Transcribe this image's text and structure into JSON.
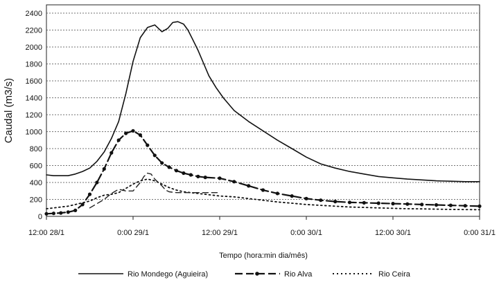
{
  "chart_data": {
    "type": "line",
    "xlabel": "Tempo (hora:min dia/mês)",
    "ylabel": "Caudal (m3/s)",
    "ylim": [
      0,
      2400
    ],
    "yticks": [
      0,
      200,
      400,
      600,
      800,
      1000,
      1200,
      1400,
      1600,
      1800,
      2000,
      2200,
      2400
    ],
    "xlim_hours": [
      0,
      60
    ],
    "xticks": [
      {
        "hours": 0,
        "label": "12:00 28/1"
      },
      {
        "hours": 12,
        "label": "0:00 29/1"
      },
      {
        "hours": 24,
        "label": "12:00 29/1"
      },
      {
        "hours": 36,
        "label": "0:00 30/1"
      },
      {
        "hours": 48,
        "label": "12:00 30/1"
      },
      {
        "hours": 60,
        "label": "0:00 31/1"
      }
    ],
    "grid": "horizontal dotted",
    "legend_position": "bottom",
    "series": [
      {
        "name": "Rio Mondego (Aguieira)",
        "style": "solid",
        "x": [
          0,
          1,
          2,
          3,
          4,
          5,
          6,
          7,
          8,
          9,
          10,
          11,
          12,
          13,
          14,
          15,
          16,
          16.8,
          17.5,
          18.2,
          19,
          19.6,
          20.2,
          21,
          21.8,
          22.5,
          23.5,
          24.5,
          26,
          28,
          30,
          32,
          34,
          36,
          38,
          40,
          42,
          44,
          46,
          48,
          50,
          52,
          54,
          56,
          58,
          60
        ],
        "y": [
          490,
          480,
          480,
          480,
          500,
          530,
          570,
          650,
          760,
          920,
          1120,
          1450,
          1830,
          2110,
          2230,
          2260,
          2180,
          2220,
          2290,
          2300,
          2270,
          2200,
          2100,
          1960,
          1800,
          1660,
          1520,
          1400,
          1250,
          1120,
          1010,
          900,
          800,
          700,
          620,
          570,
          530,
          500,
          470,
          455,
          440,
          430,
          420,
          415,
          410,
          410
        ]
      },
      {
        "name": "Rio Alva",
        "style": "dash-marker",
        "x": [
          0,
          1,
          2,
          3,
          4,
          5,
          6,
          7,
          8,
          9,
          10,
          11,
          12,
          13,
          14,
          15,
          16,
          17,
          18,
          19,
          20,
          21,
          22,
          24,
          26,
          28,
          30,
          32,
          34,
          36,
          38,
          40,
          42,
          44,
          46,
          48,
          50,
          52,
          54,
          56,
          58,
          60
        ],
        "y": [
          30,
          35,
          40,
          50,
          70,
          140,
          260,
          400,
          560,
          750,
          900,
          980,
          1010,
          960,
          840,
          720,
          630,
          580,
          540,
          510,
          490,
          470,
          460,
          450,
          410,
          360,
          310,
          270,
          240,
          210,
          190,
          175,
          165,
          160,
          155,
          150,
          145,
          140,
          135,
          130,
          125,
          120
        ]
      },
      {
        "name": "Rio Ceira",
        "style": "dotted",
        "x": [
          0,
          1,
          2,
          3,
          4,
          5,
          6,
          7,
          8,
          9,
          10,
          11,
          12,
          13,
          14,
          15,
          16,
          17,
          18,
          19,
          20,
          22,
          24,
          26,
          28,
          30,
          32,
          34,
          36,
          38,
          40,
          42,
          44,
          46,
          48,
          50,
          52,
          54,
          56,
          58,
          60
        ],
        "y": [
          90,
          100,
          110,
          120,
          140,
          160,
          180,
          220,
          250,
          260,
          280,
          330,
          380,
          420,
          440,
          420,
          380,
          340,
          310,
          290,
          280,
          260,
          240,
          230,
          210,
          190,
          170,
          155,
          140,
          130,
          120,
          110,
          105,
          100,
          95,
          90,
          88,
          85,
          82,
          80,
          78
        ]
      },
      {
        "name": "",
        "style": "dashed-secondary",
        "x": [
          6,
          8,
          9,
          10,
          11,
          12,
          13,
          13.5,
          14,
          14.5,
          15,
          16,
          16.5,
          17,
          18,
          19,
          20,
          22,
          24
        ],
        "y": [
          100,
          200,
          270,
          320,
          300,
          300,
          400,
          470,
          510,
          500,
          440,
          360,
          310,
          290,
          280,
          280,
          280,
          280,
          280
        ]
      }
    ]
  }
}
